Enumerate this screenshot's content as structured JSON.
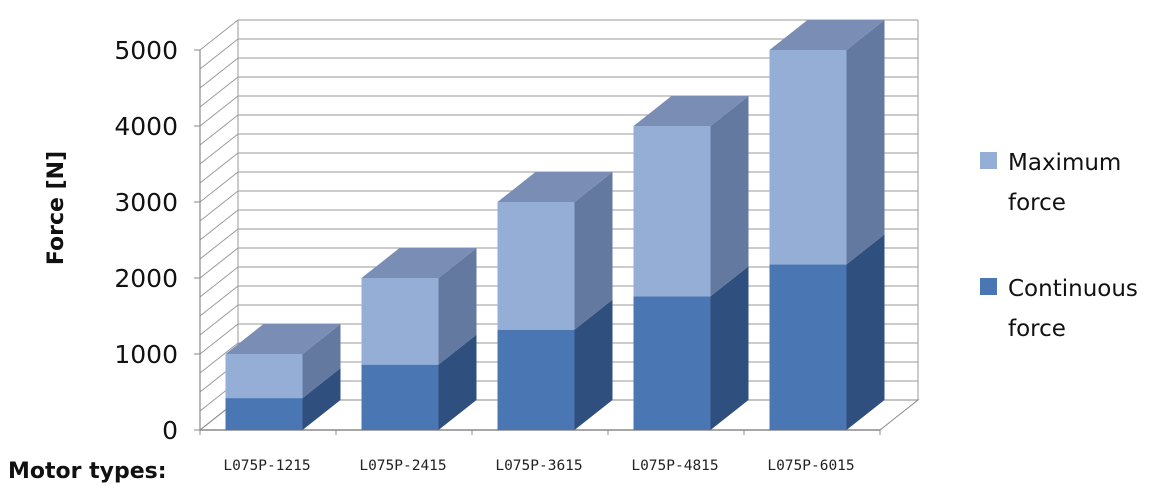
{
  "chart_data": {
    "type": "bar",
    "stacked": true,
    "three_d": true,
    "categories": [
      "L075P-1215",
      "L075P-2415",
      "L075P-3615",
      "L075P-4815",
      "L075P-6015"
    ],
    "series": [
      {
        "name": "Continuous force",
        "values": [
          420,
          860,
          1320,
          1760,
          2180
        ]
      },
      {
        "name": "Maximum force",
        "values": [
          580,
          1140,
          1680,
          2240,
          2820
        ]
      }
    ],
    "ylabel": "Force [N]",
    "xlabel": "Motor types:",
    "ylim": [
      0,
      5000
    ],
    "yticks": [
      0,
      1000,
      2000,
      3000,
      4000,
      5000
    ],
    "grid": true,
    "legend_position": "right",
    "legend": [
      {
        "lines": [
          "Maximum",
          "force"
        ],
        "color": "#95aed6"
      },
      {
        "lines": [
          "Continuous",
          "force"
        ],
        "color": "#4a77b4"
      }
    ],
    "colors": {
      "continuous_front": "#4a77b4",
      "continuous_side": "#2f4f7e",
      "continuous_top": "#3b6097",
      "maximum_front": "#95aed6",
      "maximum_side": "#6479a0",
      "maximum_top": "#7a8eb5",
      "grid": "#9a9a9a"
    }
  }
}
